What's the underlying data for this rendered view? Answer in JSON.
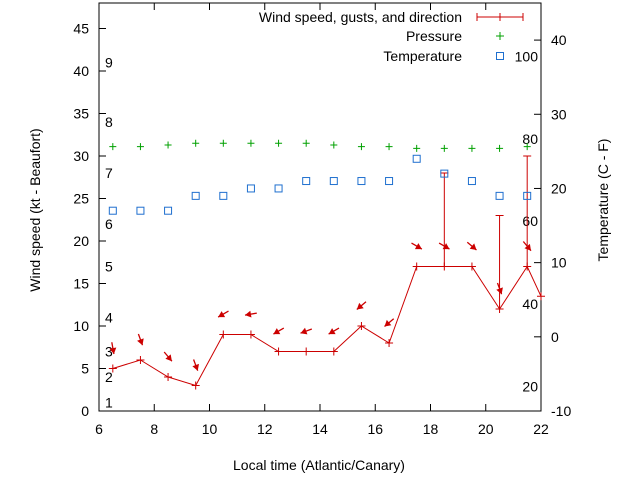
{
  "chart_data": {
    "type": "line",
    "xlabel": "Local time (Atlantic/Canary)",
    "ylabel": "Wind speed (kt - Beaufort)",
    "y2label": "Temperature (C - F)",
    "xlim": [
      6,
      22
    ],
    "ylim": [
      0,
      48
    ],
    "y2lim": [
      -10,
      45
    ],
    "x_ticks": [
      6,
      8,
      10,
      12,
      14,
      16,
      18,
      20,
      22
    ],
    "y_ticks": [
      0,
      5,
      10,
      15,
      20,
      25,
      30,
      35,
      40,
      45
    ],
    "y2_ticks": [
      -10,
      0,
      10,
      20,
      30,
      40
    ],
    "beaufort_labels": [
      {
        "text": "1",
        "y": 1
      },
      {
        "text": "2",
        "y": 4
      },
      {
        "text": "3",
        "y": 7
      },
      {
        "text": "4",
        "y": 11
      },
      {
        "text": "5",
        "y": 17
      },
      {
        "text": "6",
        "y": 22
      },
      {
        "text": "7",
        "y": 28
      },
      {
        "text": "8",
        "y": 34
      },
      {
        "text": "9",
        "y": 41
      }
    ],
    "fahrenheit_labels": [
      {
        "text": "20",
        "temp_c": -6.7
      },
      {
        "text": "40",
        "temp_c": 4.4
      },
      {
        "text": "60",
        "temp_c": 15.6
      },
      {
        "text": "80",
        "temp_c": 26.7
      },
      {
        "text": "100",
        "temp_c": 37.8
      }
    ],
    "legend": {
      "position": "top-right",
      "wind": "Wind speed, gusts, and direction",
      "pressure": "Pressure",
      "temperature": "Temperature"
    },
    "colors": {
      "wind": "#cc0000",
      "pressure": "#00a000",
      "temperature": "#1f6fcf",
      "axes": "#000000"
    },
    "series": [
      {
        "name": "Wind speed, gusts, and direction",
        "x": [
          6.5,
          7.5,
          8.5,
          9.5,
          10.5,
          11.5,
          12.5,
          13.5,
          14.5,
          15.5,
          16.5,
          17.5,
          18.5,
          19.5,
          20.5,
          21.5,
          22
        ],
        "y": [
          5,
          6,
          4,
          3,
          9,
          9,
          7,
          7,
          7,
          10,
          8,
          17,
          17,
          17,
          12,
          17,
          13.5
        ],
        "gusts": [
          null,
          null,
          null,
          null,
          null,
          null,
          null,
          null,
          null,
          null,
          null,
          null,
          28,
          null,
          23,
          30,
          null
        ],
        "direction_deg": [
          350,
          340,
          320,
          340,
          60,
          80,
          60,
          70,
          60,
          50,
          50,
          300,
          300,
          310,
          340,
          320,
          null
        ]
      },
      {
        "name": "Pressure",
        "x": [
          6.5,
          7.5,
          8.5,
          9.5,
          10.5,
          11.5,
          12.5,
          13.5,
          14.5,
          15.5,
          16.5,
          17.5,
          18.5,
          19.5,
          20.5,
          21.5
        ],
        "y": [
          31.1,
          31.1,
          31.3,
          31.5,
          31.5,
          31.5,
          31.5,
          31.5,
          31.3,
          31.1,
          31.1,
          30.9,
          30.9,
          30.9,
          30.9,
          31.1
        ]
      },
      {
        "name": "Temperature",
        "axis": "y2",
        "x": [
          6.5,
          7.5,
          8.5,
          9.5,
          10.5,
          11.5,
          12.5,
          13.5,
          14.5,
          15.5,
          16.5,
          17.5,
          18.5,
          19.5,
          20.5,
          21.5
        ],
        "y": [
          17,
          17,
          17,
          19,
          19,
          20,
          20,
          21,
          21,
          21,
          21,
          24,
          22,
          21,
          19,
          19
        ]
      }
    ]
  }
}
